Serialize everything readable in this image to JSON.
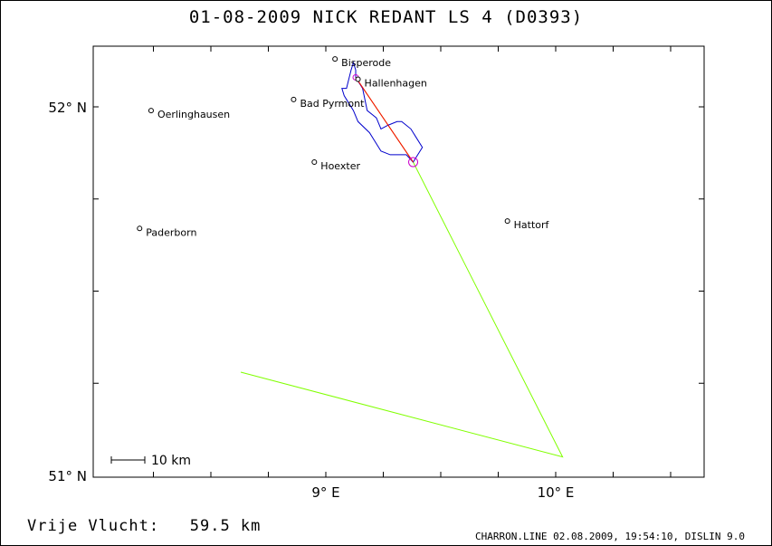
{
  "title": "01-08-2009   NICK REDANT   LS 4 (D0393)",
  "distance_text": "Vrije Vlucht:   59.5 km",
  "footer": "CHARRON.LINE 02.08.2009, 19:54:10, DISLIN 9.0",
  "scale_bar": "10 km",
  "axes": {
    "lat_ticks": [
      {
        "value": 52,
        "label": "52° N"
      },
      {
        "value": 51,
        "label": "51° N"
      }
    ],
    "lon_ticks": [
      {
        "value": 9,
        "label": "9° E"
      },
      {
        "value": 10,
        "label": "10° E"
      }
    ]
  },
  "towns": [
    {
      "name": "Bisperode",
      "lon": 9.04,
      "lat": 52.13
    },
    {
      "name": "Hallenhagen",
      "lon": 9.14,
      "lat": 52.075
    },
    {
      "name": "Bad Pyrmont",
      "lon": 8.86,
      "lat": 52.02
    },
    {
      "name": "Oerlinghausen",
      "lon": 8.24,
      "lat": 51.99
    },
    {
      "name": "Hoexter",
      "lon": 8.95,
      "lat": 51.85
    },
    {
      "name": "Paderborn",
      "lon": 8.19,
      "lat": 51.67
    },
    {
      "name": "Hattorf",
      "lon": 9.79,
      "lat": 51.69
    }
  ],
  "task_line": [
    {
      "lon": 9.13,
      "lat": 52.08
    },
    {
      "lon": 9.38,
      "lat": 51.85
    },
    {
      "lon": 10.03,
      "lat": 51.05
    },
    {
      "lon": 8.63,
      "lat": 51.28
    }
  ],
  "start_point": {
    "lon": 9.13,
    "lat": 52.08
  },
  "turnpoint": {
    "lon": 9.38,
    "lat": 51.85
  },
  "free_flight_line": [
    {
      "lon": 9.13,
      "lat": 52.08
    },
    {
      "lon": 9.38,
      "lat": 51.85
    }
  ],
  "flight_track": [
    [
      9.13,
      52.08
    ],
    [
      9.13,
      52.1
    ],
    [
      9.12,
      52.12
    ],
    [
      9.11,
      52.1
    ],
    [
      9.09,
      52.05
    ],
    [
      9.07,
      52.05
    ],
    [
      9.08,
      52.03
    ],
    [
      9.1,
      52.01
    ],
    [
      9.12,
      51.99
    ],
    [
      9.14,
      51.96
    ],
    [
      9.19,
      51.93
    ],
    [
      9.21,
      51.91
    ],
    [
      9.24,
      51.88
    ],
    [
      9.28,
      51.87
    ],
    [
      9.31,
      51.87
    ],
    [
      9.35,
      51.87
    ],
    [
      9.38,
      51.85
    ],
    [
      9.4,
      51.87
    ],
    [
      9.42,
      51.89
    ],
    [
      9.39,
      51.92
    ],
    [
      9.37,
      51.94
    ],
    [
      9.33,
      51.96
    ],
    [
      9.31,
      51.96
    ],
    [
      9.27,
      51.95
    ],
    [
      9.24,
      51.94
    ],
    [
      9.22,
      51.97
    ],
    [
      9.18,
      51.99
    ],
    [
      9.17,
      52.02
    ],
    [
      9.16,
      52.05
    ],
    [
      9.13,
      52.08
    ]
  ],
  "colors": {
    "frame": "#000000",
    "task_line": "#80ff00",
    "free_flight": "#ff0000",
    "track": "#0000cc",
    "turnpoint": "#cc00cc"
  }
}
